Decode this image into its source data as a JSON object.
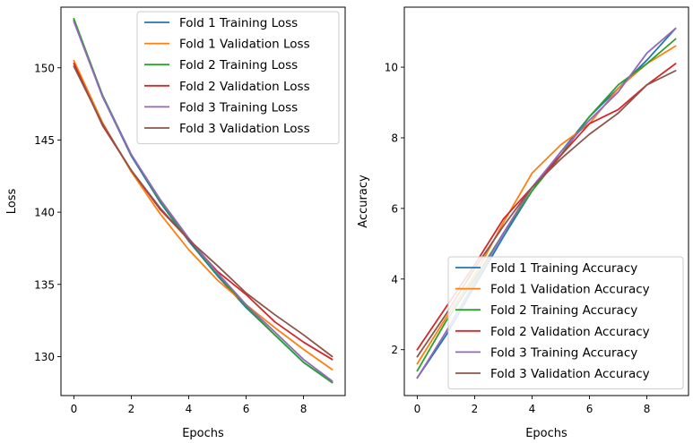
{
  "chart_data": [
    {
      "type": "line",
      "xlabel": "Epochs",
      "ylabel": "Loss",
      "xlim": [
        -0.45,
        9.45
      ],
      "ylim": [
        127.3,
        154.2
      ],
      "xticks": [
        0,
        2,
        4,
        6,
        8
      ],
      "yticks": [
        130,
        135,
        140,
        145,
        150
      ],
      "legend_position": "upper right",
      "x": [
        0,
        1,
        2,
        3,
        4,
        5,
        6,
        7,
        8,
        9
      ],
      "series": [
        {
          "name": "Fold 1 Training Loss",
          "color": "#1f77b4",
          "values": [
            153.3,
            148.0,
            143.9,
            140.7,
            138.0,
            135.6,
            133.4,
            131.5,
            129.6,
            128.2
          ]
        },
        {
          "name": "Fold 1 Validation Loss",
          "color": "#ff7f0e",
          "values": [
            150.5,
            146.2,
            142.8,
            139.9,
            137.4,
            135.3,
            133.6,
            132.0,
            130.5,
            129.1
          ]
        },
        {
          "name": "Fold 2 Training Loss",
          "color": "#2ca02c",
          "values": [
            153.4,
            148.1,
            144.0,
            140.8,
            138.1,
            135.7,
            133.5,
            131.5,
            129.6,
            128.2
          ]
        },
        {
          "name": "Fold 2 Validation Loss",
          "color": "#d62728",
          "values": [
            150.3,
            146.0,
            142.9,
            140.2,
            138.1,
            135.9,
            134.3,
            132.4,
            131.0,
            129.8
          ]
        },
        {
          "name": "Fold 3 Training Loss",
          "color": "#9467bd",
          "values": [
            153.2,
            148.0,
            144.0,
            140.9,
            138.2,
            135.8,
            133.6,
            131.7,
            129.8,
            128.3
          ]
        },
        {
          "name": "Fold 3 Validation Loss",
          "color": "#8c564b",
          "values": [
            150.1,
            146.1,
            142.9,
            140.3,
            138.1,
            136.3,
            134.4,
            132.9,
            131.5,
            130.0
          ]
        }
      ]
    },
    {
      "type": "line",
      "xlabel": "Epochs",
      "ylabel": "Accuracy",
      "xlim": [
        -0.45,
        9.45
      ],
      "ylim": [
        0.7,
        11.7
      ],
      "xticks": [
        0,
        2,
        4,
        6,
        8
      ],
      "yticks": [
        2,
        4,
        6,
        8,
        10
      ],
      "legend_position": "lower right",
      "x": [
        0,
        1,
        2,
        3,
        4,
        5,
        6,
        7,
        8,
        9
      ],
      "series": [
        {
          "name": "Fold 1 Training Accuracy",
          "color": "#1f77b4",
          "values": [
            1.2,
            2.4,
            3.8,
            5.2,
            6.5,
            7.6,
            8.6,
            9.4,
            10.2,
            11.1
          ]
        },
        {
          "name": "Fold 1 Validation Accuracy",
          "color": "#ff7f0e",
          "values": [
            1.6,
            2.9,
            4.1,
            5.6,
            7.0,
            7.8,
            8.4,
            9.4,
            10.1,
            10.6
          ]
        },
        {
          "name": "Fold 2 Training Accuracy",
          "color": "#2ca02c",
          "values": [
            1.4,
            2.8,
            4.0,
            5.3,
            6.5,
            7.5,
            8.6,
            9.5,
            10.1,
            10.8
          ]
        },
        {
          "name": "Fold 2 Validation Accuracy",
          "color": "#d62728",
          "values": [
            2.0,
            3.2,
            4.4,
            5.7,
            6.6,
            7.5,
            8.4,
            8.8,
            9.5,
            10.1
          ]
        },
        {
          "name": "Fold 3 Training Accuracy",
          "color": "#9467bd",
          "values": [
            1.2,
            2.5,
            3.9,
            5.3,
            6.6,
            7.6,
            8.5,
            9.3,
            10.4,
            11.1
          ]
        },
        {
          "name": "Fold 3 Validation Accuracy",
          "color": "#8c564b",
          "values": [
            1.8,
            3.0,
            4.3,
            5.5,
            6.6,
            7.4,
            8.1,
            8.7,
            9.5,
            9.9
          ]
        }
      ]
    }
  ]
}
